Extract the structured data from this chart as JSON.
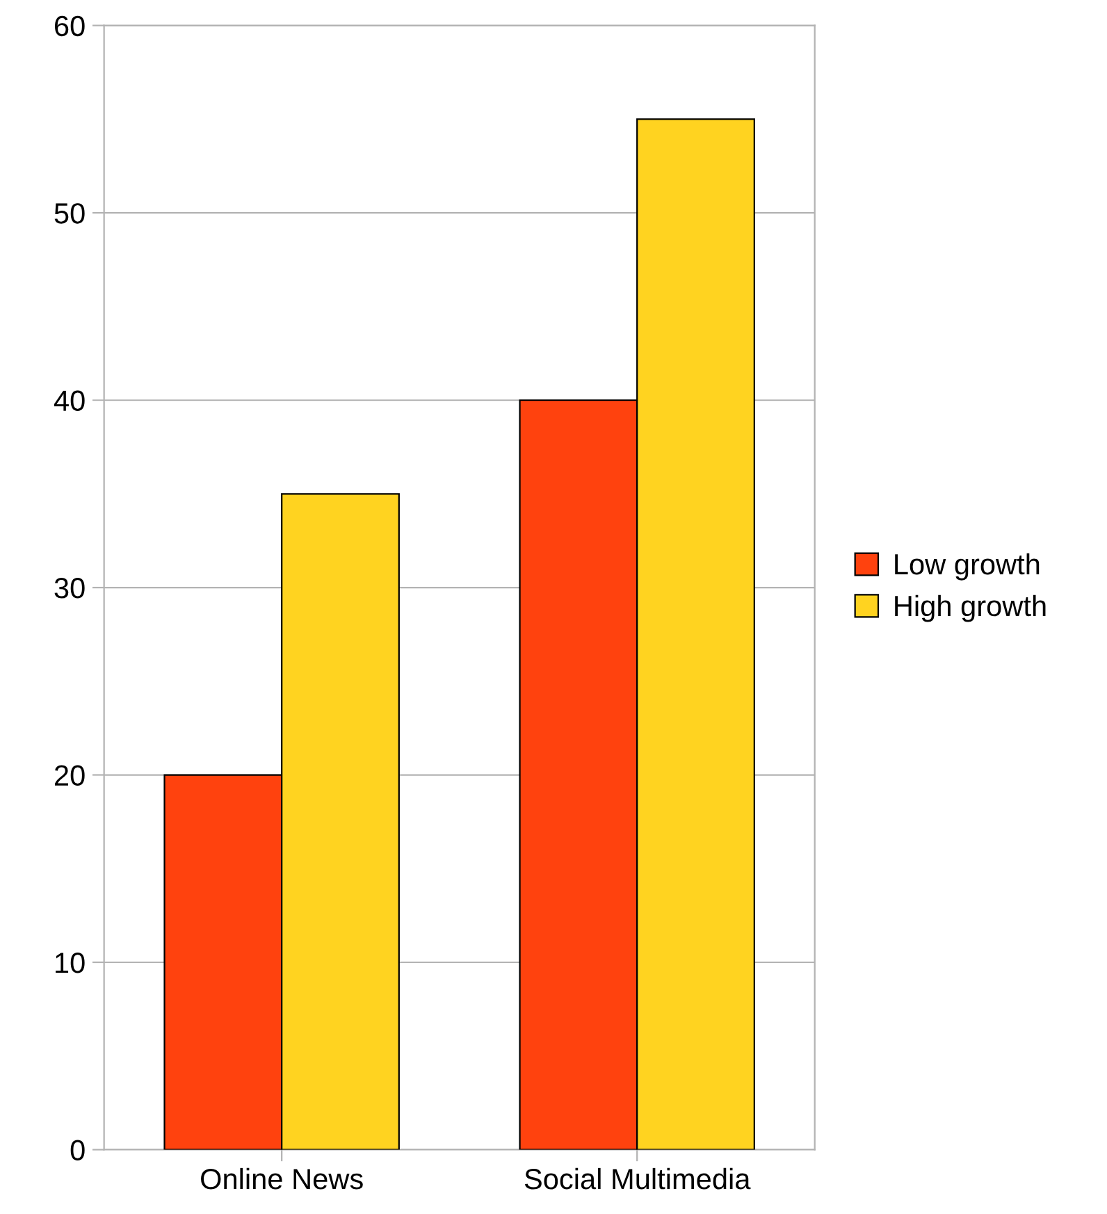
{
  "chart_data": {
    "type": "bar",
    "categories": [
      "Online News",
      "Social Multimedia"
    ],
    "series": [
      {
        "name": "Low growth",
        "color": "#ff420e",
        "values": [
          20,
          40
        ]
      },
      {
        "name": "High growth",
        "color": "#ffd320",
        "values": [
          35,
          55
        ]
      }
    ],
    "ylim": [
      0,
      60
    ],
    "yticks": [
      0,
      10,
      20,
      30,
      40,
      50,
      60
    ],
    "grid": "y",
    "legend": "right"
  }
}
